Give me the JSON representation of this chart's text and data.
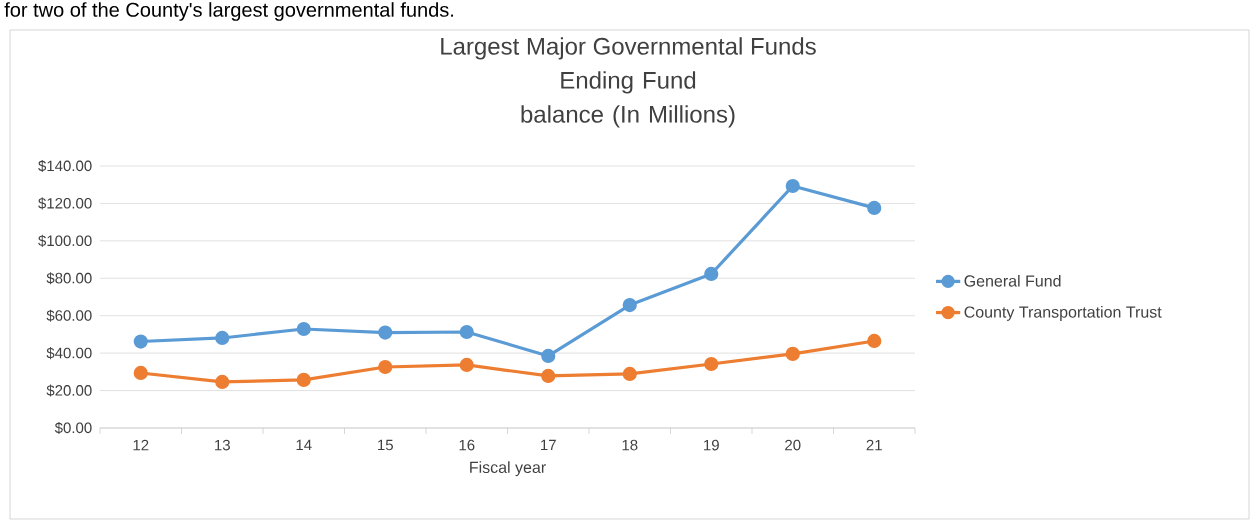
{
  "chart_data": {
    "type": "line",
    "title": "Largest Major Governmental Funds",
    "subtitle": "Ending Fund balance (In Millions)",
    "xlabel": "Fiscal year",
    "annotations": [
      "for two of the County's largest governmental funds."
    ],
    "categories": [
      "12",
      "13",
      "14",
      "15",
      "16",
      "17",
      "18",
      "19",
      "20",
      "21"
    ],
    "series": [
      {
        "name": "General Fund",
        "color": "#5b9bd5",
        "values": [
          46.2,
          48.1,
          52.9,
          51.0,
          51.3,
          38.5,
          65.7,
          82.3,
          129.3,
          117.6
        ]
      },
      {
        "name": "County Transportation Trust",
        "color": "#ed7d31",
        "values": [
          29.4,
          24.6,
          25.7,
          32.6,
          33.7,
          27.8,
          28.9,
          34.2,
          39.6,
          46.5
        ]
      }
    ],
    "ylim": [
      0,
      140
    ],
    "yticks": [
      {
        "value": 0,
        "label": "$0.00"
      },
      {
        "value": 20,
        "label": "$20.00"
      },
      {
        "value": 40,
        "label": "$40.00"
      },
      {
        "value": 60,
        "label": "$60.00"
      },
      {
        "value": 80,
        "label": "$80.00"
      },
      {
        "value": 100,
        "label": "$100.00"
      },
      {
        "value": 120,
        "label": "$120.00"
      },
      {
        "value": 140,
        "label": "$140.00"
      }
    ],
    "grid": "y",
    "legend": "right",
    "marker": "circle",
    "line_style": "solid"
  }
}
